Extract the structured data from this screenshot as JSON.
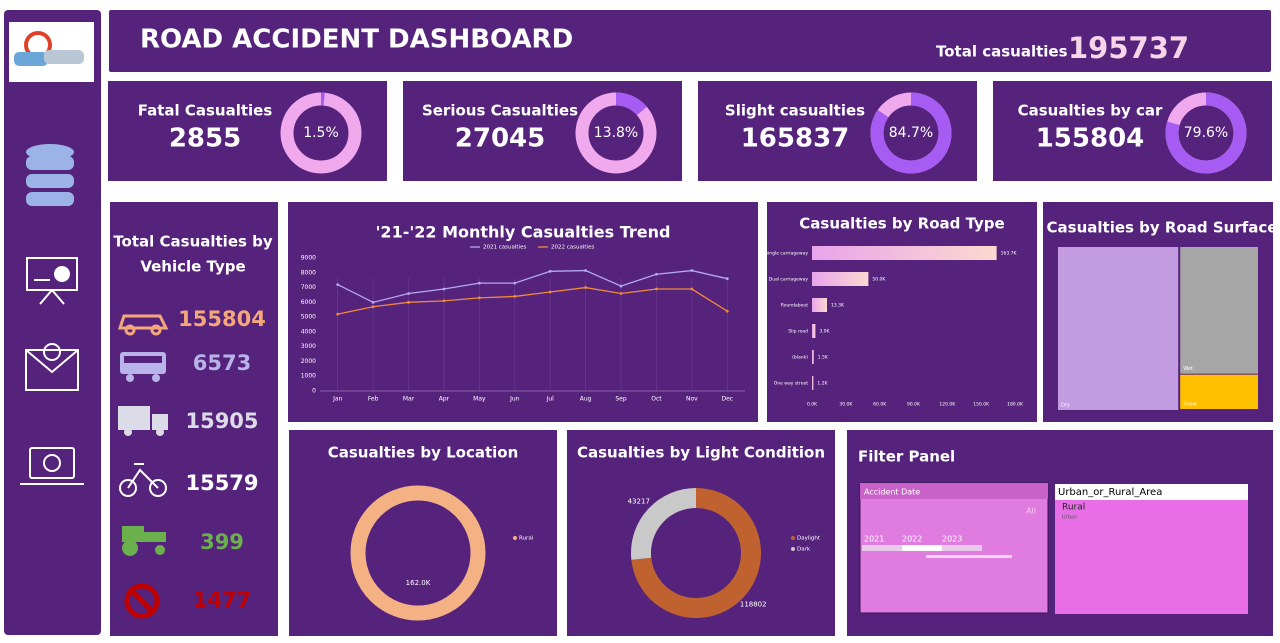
{
  "header": {
    "title": "ROAD ACCIDENT DASHBOARD",
    "total_label": "Total casualties",
    "total_value": 195737
  },
  "kpis": [
    {
      "label": "Fatal Casualties",
      "value": 2855,
      "percent": 1.5,
      "percent_label": "1.5%"
    },
    {
      "label": "Serious Casualties",
      "value": 27045,
      "percent": 13.8,
      "percent_label": "13.8%"
    },
    {
      "label": "Slight casualties",
      "value": 165837,
      "percent": 84.7,
      "percent_label": "84.7%"
    },
    {
      "label": "Casualties by car",
      "value": 155804,
      "percent": 79.6,
      "percent_label": "79.6%"
    }
  ],
  "kpi_colors": {
    "share": "#a65cf2",
    "rest": "#f1a9ee"
  },
  "chart_data": [
    {
      "type": "pictograph",
      "title_lines": [
        "Total Casualties by",
        "Vehicle Type"
      ],
      "values": [
        155804,
        6573,
        15905,
        15579,
        399,
        1477
      ],
      "colors": [
        "#f4a77a",
        "#b8b4ea",
        "#dcdce8",
        "#ffffff",
        "#6ab04c",
        "#c00000"
      ]
    },
    {
      "type": "line",
      "title": "'21-'22 Monthly Casualties Trend",
      "categories": [
        "Jan",
        "Feb",
        "Mar",
        "Apr",
        "May",
        "Jun",
        "Jul",
        "Aug",
        "Sep",
        "Oct",
        "Nov",
        "Dec"
      ],
      "series": [
        {
          "name": "2021 casualties",
          "color": "#b4a7f5",
          "values": [
            7200,
            6000,
            6600,
            6900,
            7300,
            7300,
            8100,
            8150,
            7100,
            7900,
            8150,
            7600
          ]
        },
        {
          "name": "2022 casualties",
          "color": "#f08a3a",
          "values": [
            5200,
            5700,
            6000,
            6100,
            6300,
            6400,
            6700,
            7000,
            6600,
            6900,
            6900,
            5400
          ]
        }
      ],
      "ylim": [
        0,
        9000
      ],
      "yticks": [
        0,
        1000,
        2000,
        3000,
        4000,
        5000,
        6000,
        7000,
        8000,
        9000
      ],
      "grid": false
    },
    {
      "type": "hbar",
      "title": "Casualties by Road Type",
      "categories": [
        "Single carriageway",
        "Dual carriageway",
        "Roundabout",
        "Slip road",
        "(blank)",
        "One way street"
      ],
      "values": [
        163700,
        50000,
        13300,
        3000,
        1500,
        1200
      ],
      "value_labels": [
        "163.7K",
        "50.0K",
        "13.3K",
        "3.0K",
        "1.5K",
        "1.2K"
      ],
      "color": "#f0b0ea",
      "xlim": [
        0,
        180000
      ],
      "xticks": [
        {
          "value": 0,
          "label": "0.0K"
        },
        {
          "value": 30000,
          "label": "30.0K"
        },
        {
          "value": 60000,
          "label": "60.0K"
        },
        {
          "value": 90000,
          "label": "90.0K"
        },
        {
          "value": 120000,
          "label": "120.0K"
        },
        {
          "value": 150000,
          "label": "150.0K"
        },
        {
          "value": 180000,
          "label": "180.0K"
        }
      ]
    },
    {
      "type": "treemap",
      "title": "Casualties by Road Surface",
      "categories": [
        "Dry",
        "Wet",
        "Snow"
      ],
      "values": [
        118600,
        60400,
        16700
      ],
      "colors": [
        "#c39be0",
        "#a6a6a6",
        "#ffc000"
      ]
    },
    {
      "type": "donut",
      "title": "Casualties by Location",
      "categories": [
        "Rural"
      ],
      "values": [
        162000
      ],
      "value_labels": [
        "162.0K"
      ],
      "colors": [
        "#f4b183"
      ]
    },
    {
      "type": "donut",
      "title": "Casualties by Light Condition",
      "categories": [
        "Daylight",
        "Dark"
      ],
      "values": [
        118802,
        43217
      ],
      "colors": [
        "#c0622f",
        "#c9c9c9"
      ]
    }
  ],
  "filter": {
    "title": "Filter Panel",
    "date_slicer": {
      "title": "Accident Date",
      "selection": "All",
      "years": [
        "2021",
        "2022",
        "2023"
      ]
    },
    "area_slicer": {
      "title": "Urban_or_Rural_Area",
      "items": [
        "Rural",
        "Urban"
      ]
    }
  }
}
